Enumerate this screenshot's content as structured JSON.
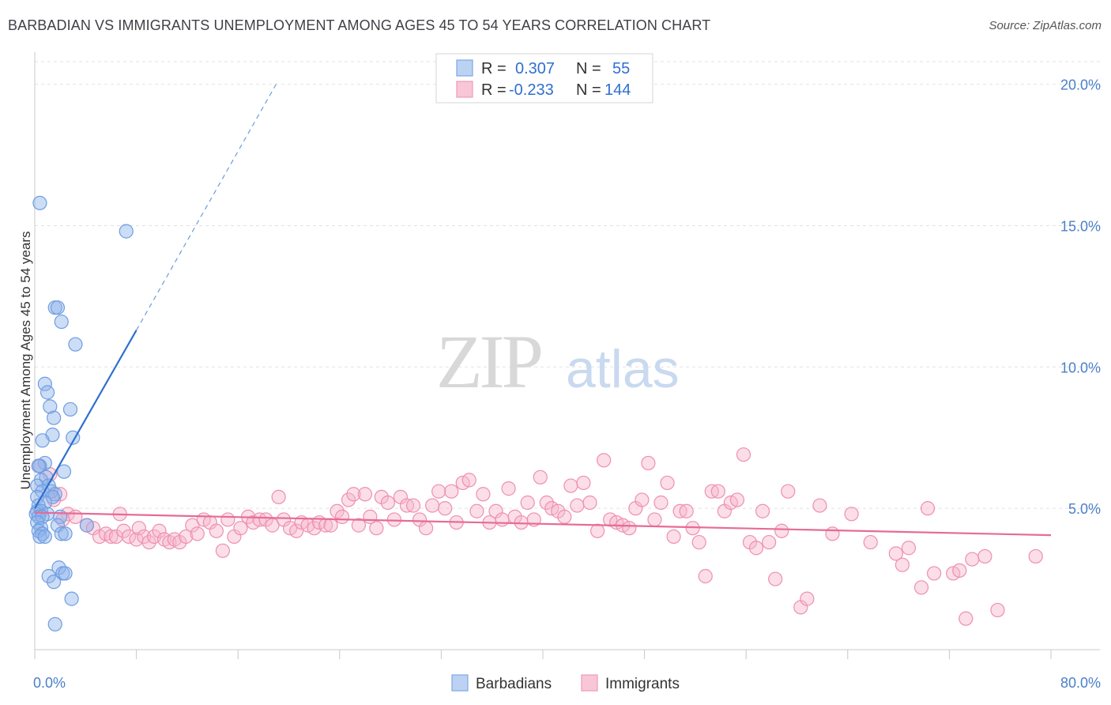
{
  "title": "BARBADIAN VS IMMIGRANTS UNEMPLOYMENT AMONG AGES 45 TO 54 YEARS CORRELATION CHART",
  "source": "Source: ZipAtlas.com",
  "watermark": {
    "zip": "ZIP",
    "atlas": "atlas"
  },
  "chart_data": {
    "type": "scatter",
    "ylabel": "Unemployment Among Ages 45 to 54 years",
    "xlim": [
      0,
      80
    ],
    "ylim": [
      0,
      20.8
    ],
    "x_ticks": [
      {
        "value": 0,
        "label": "0.0%"
      },
      {
        "value": 80,
        "label": "80.0%"
      }
    ],
    "y_ticks": [
      {
        "value": 5,
        "label": "5.0%"
      },
      {
        "value": 10,
        "label": "10.0%"
      },
      {
        "value": 15,
        "label": "15.0%"
      },
      {
        "value": 20,
        "label": "20.0%"
      }
    ],
    "grid": true,
    "legend_top": [
      {
        "r_label": "R =",
        "r_value": "0.307",
        "n_label": "N =",
        "n_value": "55"
      },
      {
        "r_label": "R =",
        "r_value": "-0.233",
        "n_label": "N =",
        "n_value": "144"
      }
    ],
    "series": [
      {
        "name": "Barbadians",
        "color": "#8fb4ea",
        "stroke": "#6f9de0",
        "trend": {
          "x0": 0,
          "y0": 5.0,
          "x1": 8.0,
          "y1": 11.3,
          "dash_x1": 19.0,
          "dash_y1": 20.0,
          "color": "#2f6fcf"
        },
        "points": [
          [
            0.4,
            15.8
          ],
          [
            7.2,
            14.8
          ],
          [
            1.6,
            12.1
          ],
          [
            1.8,
            12.1
          ],
          [
            2.1,
            11.6
          ],
          [
            3.2,
            10.8
          ],
          [
            0.8,
            9.4
          ],
          [
            1.0,
            9.1
          ],
          [
            1.2,
            8.6
          ],
          [
            2.8,
            8.5
          ],
          [
            1.5,
            8.2
          ],
          [
            1.4,
            7.6
          ],
          [
            3.0,
            7.5
          ],
          [
            0.6,
            7.4
          ],
          [
            0.8,
            6.6
          ],
          [
            0.4,
            6.5
          ],
          [
            0.3,
            6.5
          ],
          [
            2.3,
            6.3
          ],
          [
            0.9,
            6.1
          ],
          [
            0.5,
            6.0
          ],
          [
            0.2,
            5.8
          ],
          [
            1.1,
            5.8
          ],
          [
            0.6,
            5.6
          ],
          [
            1.3,
            5.6
          ],
          [
            1.6,
            5.5
          ],
          [
            0.2,
            5.4
          ],
          [
            1.4,
            5.4
          ],
          [
            0.8,
            5.2
          ],
          [
            0.3,
            5.1
          ],
          [
            0.2,
            4.9
          ],
          [
            0.5,
            4.9
          ],
          [
            0.1,
            4.8
          ],
          [
            1.0,
            4.8
          ],
          [
            0.3,
            4.7
          ],
          [
            0.6,
            4.7
          ],
          [
            2.0,
            4.7
          ],
          [
            0.2,
            4.5
          ],
          [
            1.8,
            4.4
          ],
          [
            4.1,
            4.4
          ],
          [
            0.5,
            4.3
          ],
          [
            0.3,
            4.2
          ],
          [
            2.1,
            4.1
          ],
          [
            0.6,
            4.1
          ],
          [
            2.4,
            4.1
          ],
          [
            0.4,
            4.0
          ],
          [
            0.8,
            4.0
          ],
          [
            1.9,
            2.9
          ],
          [
            2.2,
            2.7
          ],
          [
            2.4,
            2.7
          ],
          [
            1.1,
            2.6
          ],
          [
            1.5,
            2.4
          ],
          [
            2.9,
            1.8
          ],
          [
            1.6,
            0.9
          ]
        ]
      },
      {
        "name": "Immigrants",
        "color": "#f7b6cc",
        "stroke": "#ee8fb0",
        "trend": {
          "x0": 0,
          "y0": 4.85,
          "x1": 80,
          "y1": 4.05,
          "color": "#e66b98"
        },
        "points": [
          [
            0.3,
            6.5
          ],
          [
            1.2,
            6.2
          ],
          [
            2.0,
            5.5
          ],
          [
            1.5,
            5.3
          ],
          [
            2.6,
            4.8
          ],
          [
            3.2,
            4.7
          ],
          [
            2.2,
            4.6
          ],
          [
            4.1,
            4.4
          ],
          [
            4.6,
            4.3
          ],
          [
            5.1,
            4.0
          ],
          [
            5.6,
            4.1
          ],
          [
            6.0,
            4.0
          ],
          [
            6.7,
            4.8
          ],
          [
            6.4,
            4.0
          ],
          [
            7.0,
            4.2
          ],
          [
            7.4,
            4.0
          ],
          [
            8.0,
            3.9
          ],
          [
            8.2,
            4.3
          ],
          [
            8.6,
            4.0
          ],
          [
            9.0,
            3.8
          ],
          [
            9.4,
            4.0
          ],
          [
            9.8,
            4.2
          ],
          [
            10.2,
            3.9
          ],
          [
            10.6,
            3.8
          ],
          [
            11.0,
            3.9
          ],
          [
            11.4,
            3.8
          ],
          [
            11.9,
            4.0
          ],
          [
            12.4,
            4.4
          ],
          [
            12.8,
            4.1
          ],
          [
            13.3,
            4.6
          ],
          [
            13.8,
            4.5
          ],
          [
            14.3,
            4.2
          ],
          [
            14.8,
            3.5
          ],
          [
            15.2,
            4.6
          ],
          [
            15.7,
            4.0
          ],
          [
            16.2,
            4.3
          ],
          [
            16.8,
            4.7
          ],
          [
            17.2,
            4.5
          ],
          [
            17.7,
            4.6
          ],
          [
            18.2,
            4.6
          ],
          [
            18.7,
            4.4
          ],
          [
            19.2,
            5.4
          ],
          [
            19.6,
            4.6
          ],
          [
            20.1,
            4.3
          ],
          [
            20.6,
            4.2
          ],
          [
            21.0,
            4.5
          ],
          [
            21.5,
            4.4
          ],
          [
            22.0,
            4.3
          ],
          [
            22.4,
            4.5
          ],
          [
            22.9,
            4.4
          ],
          [
            23.3,
            4.4
          ],
          [
            23.8,
            4.9
          ],
          [
            24.2,
            4.7
          ],
          [
            24.7,
            5.3
          ],
          [
            25.1,
            5.5
          ],
          [
            25.5,
            4.4
          ],
          [
            26.0,
            5.5
          ],
          [
            26.4,
            4.7
          ],
          [
            26.9,
            4.3
          ],
          [
            27.3,
            5.4
          ],
          [
            27.8,
            5.2
          ],
          [
            28.3,
            4.6
          ],
          [
            28.8,
            5.4
          ],
          [
            29.3,
            5.1
          ],
          [
            29.8,
            5.1
          ],
          [
            30.3,
            4.6
          ],
          [
            30.8,
            4.3
          ],
          [
            31.3,
            5.1
          ],
          [
            31.8,
            5.6
          ],
          [
            32.3,
            5.0
          ],
          [
            32.8,
            5.6
          ],
          [
            33.2,
            4.5
          ],
          [
            33.7,
            5.9
          ],
          [
            34.2,
            6.0
          ],
          [
            34.8,
            4.9
          ],
          [
            35.3,
            5.5
          ],
          [
            35.8,
            4.5
          ],
          [
            36.3,
            4.9
          ],
          [
            36.8,
            4.6
          ],
          [
            37.3,
            5.7
          ],
          [
            37.8,
            4.7
          ],
          [
            38.3,
            4.5
          ],
          [
            38.8,
            5.2
          ],
          [
            39.3,
            4.6
          ],
          [
            39.8,
            6.1
          ],
          [
            40.3,
            5.2
          ],
          [
            40.7,
            5.0
          ],
          [
            41.2,
            4.9
          ],
          [
            41.7,
            4.7
          ],
          [
            42.2,
            5.8
          ],
          [
            42.7,
            5.1
          ],
          [
            43.2,
            5.9
          ],
          [
            43.7,
            5.2
          ],
          [
            44.3,
            4.2
          ],
          [
            44.8,
            6.7
          ],
          [
            45.3,
            4.6
          ],
          [
            45.8,
            4.5
          ],
          [
            46.3,
            4.4
          ],
          [
            46.8,
            4.3
          ],
          [
            47.3,
            5.0
          ],
          [
            47.8,
            5.3
          ],
          [
            48.3,
            6.6
          ],
          [
            48.8,
            4.6
          ],
          [
            49.3,
            5.2
          ],
          [
            49.8,
            5.9
          ],
          [
            50.3,
            4.0
          ],
          [
            50.8,
            4.9
          ],
          [
            51.3,
            4.9
          ],
          [
            51.8,
            4.3
          ],
          [
            52.3,
            3.8
          ],
          [
            52.8,
            2.6
          ],
          [
            53.3,
            5.6
          ],
          [
            53.8,
            5.6
          ],
          [
            54.3,
            4.9
          ],
          [
            54.8,
            5.2
          ],
          [
            55.3,
            5.3
          ],
          [
            55.8,
            6.9
          ],
          [
            56.3,
            3.8
          ],
          [
            56.8,
            3.6
          ],
          [
            57.3,
            4.9
          ],
          [
            57.8,
            3.8
          ],
          [
            58.3,
            2.5
          ],
          [
            58.8,
            4.2
          ],
          [
            59.3,
            5.6
          ],
          [
            60.3,
            1.5
          ],
          [
            60.8,
            1.8
          ],
          [
            61.8,
            5.1
          ],
          [
            62.8,
            4.1
          ],
          [
            64.3,
            4.8
          ],
          [
            65.8,
            3.8
          ],
          [
            67.8,
            3.4
          ],
          [
            68.3,
            3.0
          ],
          [
            68.8,
            3.6
          ],
          [
            69.8,
            2.2
          ],
          [
            70.3,
            5.0
          ],
          [
            70.8,
            2.7
          ],
          [
            72.3,
            2.7
          ],
          [
            72.8,
            2.8
          ],
          [
            73.8,
            3.2
          ],
          [
            74.8,
            3.3
          ],
          [
            73.3,
            1.1
          ],
          [
            75.8,
            1.4
          ],
          [
            78.8,
            3.3
          ]
        ]
      }
    ]
  }
}
